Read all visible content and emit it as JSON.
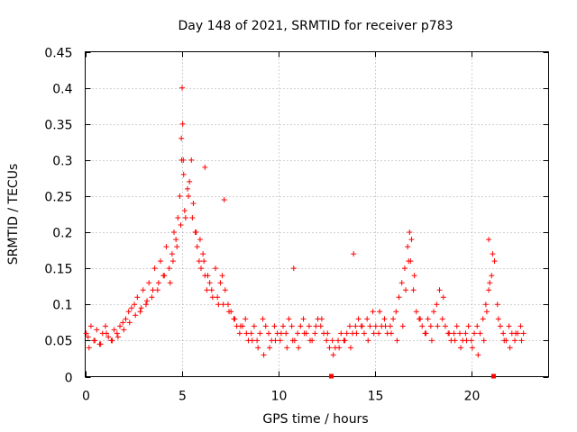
{
  "chart_data": {
    "type": "scatter",
    "title": "Day 148 of 2021, SRMTID for receiver p783",
    "xlabel": "GPS time / hours",
    "ylabel": "SRMTID / TECUs",
    "xlim": [
      0,
      24.0
    ],
    "ylim": [
      0,
      0.45
    ],
    "grid": true,
    "marker": "+",
    "color": "#ff0000",
    "x_ticks": [
      0,
      5,
      10,
      15,
      20
    ],
    "x_tick_labels": [
      "0",
      "5",
      "10",
      "15",
      "20"
    ],
    "y_ticks": [
      0,
      0.05,
      0.1,
      0.15,
      0.2,
      0.25,
      0.3,
      0.35,
      0.4,
      0.45
    ],
    "y_tick_labels": [
      "0",
      "0.05",
      "0.1",
      "0.15",
      "0.2",
      "0.25",
      "0.3",
      "0.35",
      "0.4",
      "0.45"
    ],
    "gap_markers_x": [
      12.75,
      21.15
    ],
    "series": [
      {
        "name": "SRMTID",
        "x": [
          0.05,
          0.15,
          0.3,
          0.45,
          0.6,
          0.75,
          0.9,
          1.05,
          1.2,
          1.35,
          1.5,
          1.65,
          1.8,
          1.95,
          2.1,
          2.25,
          2.4,
          2.55,
          2.7,
          2.85,
          3.0,
          3.15,
          3.3,
          3.45,
          3.6,
          3.75,
          3.9,
          4.05,
          4.2,
          4.35,
          4.5,
          4.6,
          4.7,
          4.8,
          4.9,
          5.0,
          5.05,
          5.1,
          5.2,
          5.3,
          5.4,
          5.5,
          5.6,
          5.7,
          5.8,
          5.9,
          6.0,
          6.1,
          6.2,
          6.3,
          6.45,
          6.6,
          6.75,
          6.9,
          7.0,
          7.1,
          7.25,
          7.4,
          7.55,
          7.7,
          7.85,
          8.0,
          8.15,
          8.3,
          8.45,
          8.6,
          8.75,
          8.9,
          9.05,
          9.2,
          9.35,
          9.5,
          9.65,
          9.8,
          9.95,
          10.1,
          10.25,
          10.4,
          10.55,
          10.7,
          10.85,
          11.0,
          11.15,
          11.3,
          11.45,
          11.6,
          11.75,
          11.9,
          12.05,
          12.2,
          12.35,
          12.5,
          12.65,
          12.8,
          12.95,
          13.1,
          13.25,
          13.4,
          13.55,
          13.7,
          13.85,
          14.0,
          14.15,
          14.3,
          14.45,
          14.6,
          14.75,
          14.9,
          15.05,
          15.2,
          15.35,
          15.5,
          15.65,
          15.8,
          15.95,
          16.1,
          16.25,
          16.4,
          16.55,
          16.7,
          16.85,
          17.0,
          17.15,
          17.3,
          17.45,
          17.6,
          17.75,
          17.9,
          18.05,
          18.2,
          18.35,
          18.5,
          18.65,
          18.8,
          18.95,
          19.1,
          19.25,
          19.4,
          19.55,
          19.7,
          19.85,
          20.0,
          20.15,
          20.3,
          20.45,
          20.6,
          20.75,
          20.9,
          21.05,
          21.2,
          21.35,
          21.5,
          21.65,
          21.8,
          21.95,
          22.1,
          22.25,
          22.4,
          22.55,
          22.7,
          0.2,
          0.5,
          0.8,
          1.1,
          1.4,
          1.7,
          2.0,
          2.3,
          2.6,
          2.9,
          3.2,
          3.5,
          3.8,
          4.1,
          4.4,
          4.55,
          4.75,
          4.95,
          5.15,
          5.35,
          5.55,
          5.75,
          5.95,
          6.15,
          6.35,
          6.55,
          6.85,
          7.15,
          7.45,
          7.75,
          8.05,
          8.35,
          8.65,
          8.95,
          9.25,
          9.55,
          9.85,
          10.15,
          10.45,
          10.75,
          11.05,
          11.35,
          11.65,
          11.95,
          12.25,
          12.55,
          12.85,
          13.15,
          13.45,
          13.75,
          14.05,
          14.35,
          14.65,
          14.95,
          15.25,
          15.55,
          15.85,
          16.15,
          16.45,
          16.6,
          16.75,
          16.9,
          17.05,
          17.35,
          17.65,
          17.95,
          18.25,
          18.55,
          18.85,
          19.15,
          19.45,
          19.75,
          20.05,
          20.35,
          20.65,
          20.8,
          20.95,
          21.1,
          21.4,
          21.7,
          22.0,
          22.3,
          22.6,
          13.9,
          10.8,
          5.02,
          4.98,
          5.08,
          6.2,
          7.2,
          16.8,
          20.9
        ],
        "y": [
          0.06,
          0.055,
          0.07,
          0.05,
          0.065,
          0.045,
          0.06,
          0.07,
          0.055,
          0.05,
          0.065,
          0.06,
          0.07,
          0.075,
          0.08,
          0.09,
          0.095,
          0.1,
          0.11,
          0.09,
          0.12,
          0.1,
          0.13,
          0.11,
          0.15,
          0.12,
          0.16,
          0.14,
          0.18,
          0.15,
          0.17,
          0.2,
          0.19,
          0.22,
          0.25,
          0.3,
          0.35,
          0.28,
          0.22,
          0.26,
          0.27,
          0.3,
          0.24,
          0.2,
          0.18,
          0.16,
          0.15,
          0.17,
          0.14,
          0.12,
          0.13,
          0.11,
          0.15,
          0.1,
          0.13,
          0.14,
          0.12,
          0.1,
          0.09,
          0.08,
          0.07,
          0.06,
          0.07,
          0.08,
          0.05,
          0.06,
          0.07,
          0.05,
          0.06,
          0.08,
          0.07,
          0.06,
          0.05,
          0.07,
          0.06,
          0.05,
          0.07,
          0.06,
          0.08,
          0.07,
          0.05,
          0.06,
          0.07,
          0.08,
          0.06,
          0.07,
          0.05,
          0.06,
          0.08,
          0.07,
          0.06,
          0.05,
          0.04,
          0.05,
          0.04,
          0.05,
          0.06,
          0.05,
          0.06,
          0.07,
          0.06,
          0.07,
          0.08,
          0.07,
          0.06,
          0.08,
          0.07,
          0.09,
          0.07,
          0.06,
          0.07,
          0.08,
          0.06,
          0.07,
          0.08,
          0.09,
          0.11,
          0.13,
          0.15,
          0.18,
          0.16,
          0.12,
          0.09,
          0.08,
          0.07,
          0.06,
          0.08,
          0.07,
          0.09,
          0.1,
          0.12,
          0.08,
          0.07,
          0.06,
          0.05,
          0.06,
          0.07,
          0.06,
          0.05,
          0.06,
          0.07,
          0.05,
          0.06,
          0.07,
          0.06,
          0.08,
          0.1,
          0.12,
          0.14,
          0.16,
          0.1,
          0.07,
          0.06,
          0.05,
          0.07,
          0.06,
          0.05,
          0.06,
          0.07,
          0.06,
          0.04,
          0.05,
          0.045,
          0.06,
          0.05,
          0.055,
          0.065,
          0.075,
          0.085,
          0.095,
          0.105,
          0.12,
          0.13,
          0.14,
          0.13,
          0.16,
          0.18,
          0.21,
          0.23,
          0.25,
          0.22,
          0.2,
          0.19,
          0.16,
          0.14,
          0.12,
          0.11,
          0.1,
          0.09,
          0.08,
          0.07,
          0.06,
          0.05,
          0.04,
          0.03,
          0.04,
          0.05,
          0.06,
          0.04,
          0.05,
          0.04,
          0.06,
          0.05,
          0.07,
          0.08,
          0.06,
          0.03,
          0.04,
          0.05,
          0.04,
          0.06,
          0.07,
          0.05,
          0.06,
          0.09,
          0.07,
          0.06,
          0.05,
          0.07,
          0.12,
          0.16,
          0.19,
          0.14,
          0.08,
          0.06,
          0.05,
          0.07,
          0.11,
          0.06,
          0.05,
          0.04,
          0.05,
          0.04,
          0.03,
          0.05,
          0.09,
          0.13,
          0.17,
          0.08,
          0.05,
          0.04,
          0.06,
          0.05,
          0.17,
          0.15,
          0.4,
          0.33,
          0.3,
          0.29,
          0.245,
          0.2,
          0.19
        ]
      }
    ]
  }
}
